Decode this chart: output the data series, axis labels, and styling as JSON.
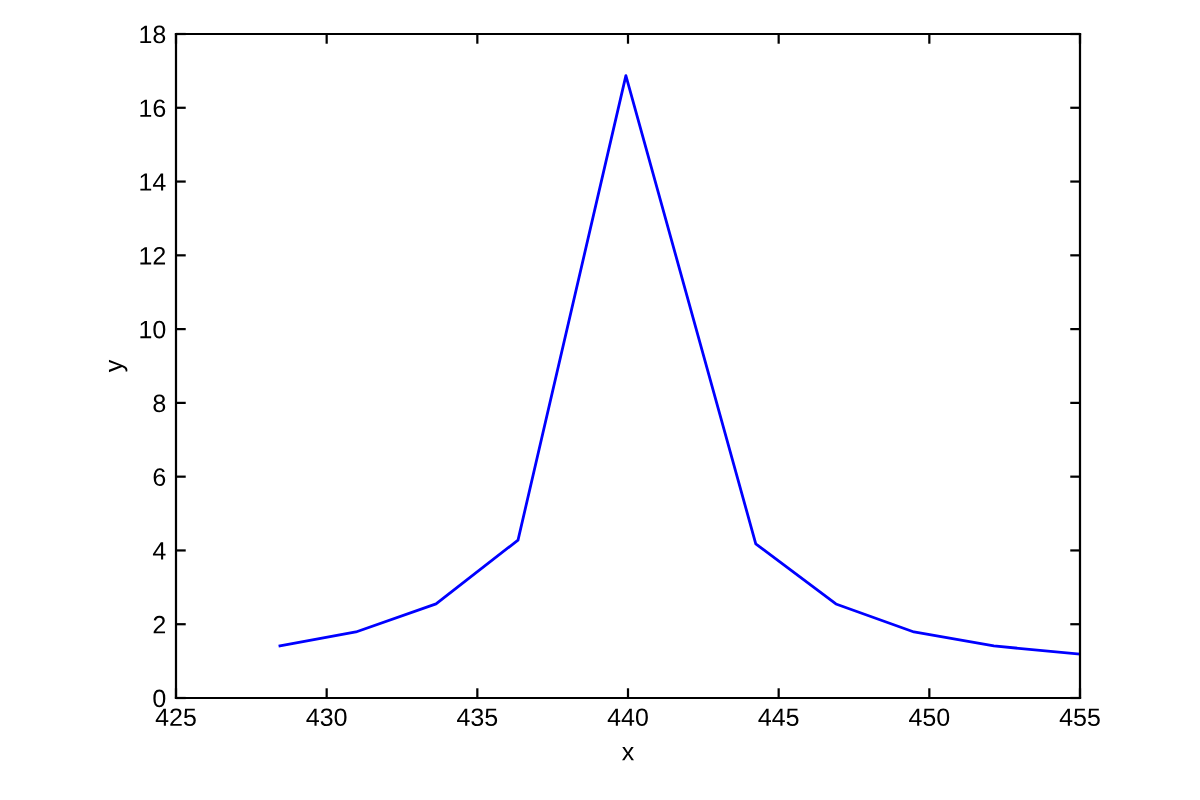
{
  "chart_data": {
    "type": "line",
    "xlabel": "x",
    "ylabel": "y",
    "x": [
      428.45,
      430.97,
      433.63,
      436.35,
      439.93,
      444.24,
      446.9,
      449.49,
      452.14,
      455
    ],
    "series": [
      {
        "color": "#0000ff",
        "values": [
          1.41,
          1.79,
          2.55,
          4.28,
          16.87,
          4.18,
          2.55,
          1.79,
          1.41,
          1.19
        ]
      }
    ],
    "xlim": [
      425,
      455
    ],
    "xticks": [
      425,
      430,
      435,
      440,
      445,
      450,
      455
    ],
    "ylim": [
      0,
      18
    ],
    "yticks": [
      0,
      2,
      4,
      6,
      8,
      10,
      12,
      14,
      16,
      18
    ],
    "grid": false,
    "legend": false,
    "marker": "none",
    "line_style": "solid"
  }
}
